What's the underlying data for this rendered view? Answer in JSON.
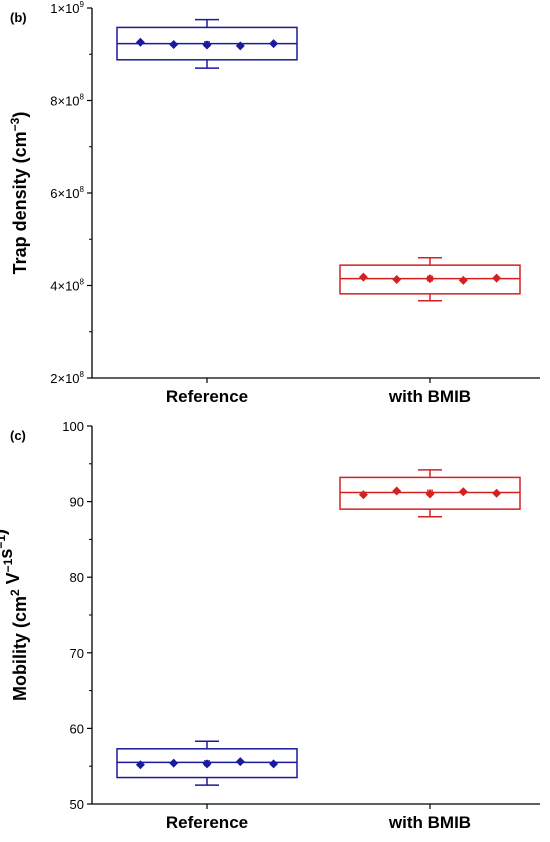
{
  "chart_data": [
    {
      "type": "box",
      "panel_label": "(b)",
      "ylabel": "Trap density (cm",
      "ylabel_sup": "−3",
      "ylabel_tail": ")",
      "ylim": [
        200000000,
        1000000000
      ],
      "yticks": [
        {
          "value": 200000000,
          "mantissa": "2×10",
          "exp": "8"
        },
        {
          "value": 400000000,
          "mantissa": "4×10",
          "exp": "8"
        },
        {
          "value": 600000000,
          "mantissa": "6×10",
          "exp": "8"
        },
        {
          "value": 800000000,
          "mantissa": "8×10",
          "exp": "8"
        },
        {
          "value": 1000000000,
          "mantissa": "1×10",
          "exp": "9"
        }
      ],
      "categories": [
        "Reference",
        "with BMIB"
      ],
      "boxes": [
        {
          "category": "Reference",
          "color": "#1a1a9c",
          "q1": 888000000,
          "median": 923000000,
          "q3": 958000000,
          "whisker_low": 870000000,
          "whisker_high": 975000000,
          "mean": 922000000,
          "points": [
            926000000,
            921000000,
            920000000,
            918000000,
            923000000
          ]
        },
        {
          "category": "with BMIB",
          "color": "#d62020",
          "q1": 382000000,
          "median": 415000000,
          "q3": 444000000,
          "whisker_low": 367000000,
          "whisker_high": 460000000,
          "mean": 415000000,
          "points": [
            418000000,
            413000000,
            415000000,
            411000000,
            416000000
          ]
        }
      ]
    },
    {
      "type": "box",
      "panel_label": "(c)",
      "ylabel": "Mobility (cm",
      "ylabel_parts": [
        {
          "text": "Mobility (cm"
        },
        {
          "sup": "2"
        },
        {
          "text": " V"
        },
        {
          "sup": "−1"
        },
        {
          "text": "s"
        },
        {
          "sup": "−1"
        },
        {
          "text": ")"
        }
      ],
      "ylim": [
        50,
        100
      ],
      "yticks": [
        {
          "value": 50,
          "label": "50"
        },
        {
          "value": 60,
          "label": "60"
        },
        {
          "value": 70,
          "label": "70"
        },
        {
          "value": 80,
          "label": "80"
        },
        {
          "value": 90,
          "label": "90"
        },
        {
          "value": 100,
          "label": "100"
        }
      ],
      "categories": [
        "Reference",
        "with BMIB"
      ],
      "boxes": [
        {
          "category": "Reference",
          "color": "#1a1a9c",
          "q1": 53.5,
          "median": 55.5,
          "q3": 57.3,
          "whisker_low": 52.5,
          "whisker_high": 58.3,
          "mean": 55.4,
          "points": [
            55.2,
            55.4,
            55.3,
            55.6,
            55.3
          ]
        },
        {
          "category": "with BMIB",
          "color": "#d62020",
          "q1": 89.0,
          "median": 91.2,
          "q3": 93.2,
          "whisker_low": 88.0,
          "whisker_high": 94.2,
          "mean": 91.2,
          "points": [
            90.9,
            91.4,
            91.0,
            91.3,
            91.1
          ]
        }
      ]
    }
  ]
}
